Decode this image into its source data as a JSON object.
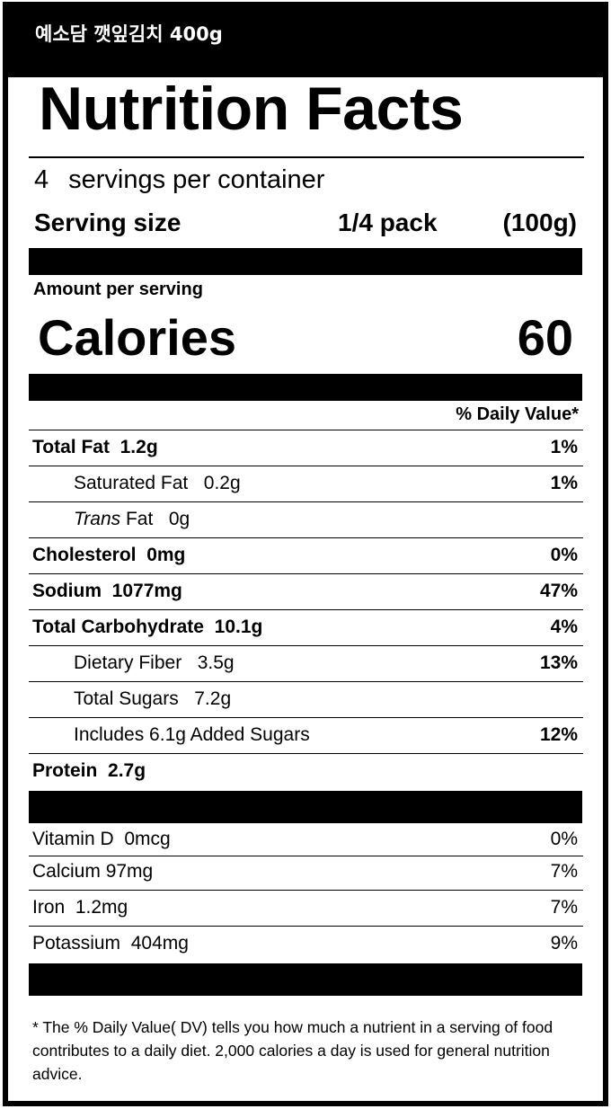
{
  "product_name": "예소담 깻잎김치 400g",
  "title": "Nutrition Facts",
  "servings": {
    "count": "4",
    "label": "servings per container"
  },
  "serving_size": {
    "label": "Serving size",
    "amount": "1/4 pack",
    "grams": "(100g)"
  },
  "amount_per_serving": "Amount per serving",
  "calories": {
    "label": "Calories",
    "value": "60"
  },
  "dv_header": "% Daily Value*",
  "nutrients": [
    {
      "name": "Total Fat",
      "amount": "1.2g",
      "dv": "1%"
    },
    {
      "name": "Saturated Fat",
      "amount": "0.2g",
      "dv": "1%"
    },
    {
      "name_italic": "Trans",
      "name": "Fat",
      "amount": "0g",
      "dv": ""
    },
    {
      "name": "Cholesterol",
      "amount": "0mg",
      "dv": "0%"
    },
    {
      "name": "Sodium",
      "amount": "1077mg",
      "dv": "47%"
    },
    {
      "name": "Total Carbohydrate",
      "amount": "10.1g",
      "dv": "4%"
    },
    {
      "name": "Dietary Fiber",
      "amount": "3.5g",
      "dv": "13%"
    },
    {
      "name": "Total Sugars",
      "amount": "7.2g",
      "dv": ""
    },
    {
      "name": "Includes 6.1g Added Sugars",
      "amount": "",
      "dv": "12%"
    },
    {
      "name": "Protein",
      "amount": "2.7g",
      "dv": ""
    }
  ],
  "vitamins": [
    {
      "name": "Vitamin D",
      "amount": "0mcg",
      "dv": "0%"
    },
    {
      "name": "Calcium",
      "amount": "97mg",
      "dv": "7%"
    },
    {
      "name": "Iron",
      "amount": "1.2mg",
      "dv": "7%"
    },
    {
      "name": "Potassium",
      "amount": "404mg",
      "dv": "9%"
    }
  ],
  "footnote": "* The % Daily Value( DV) tells you how much a nutrient in a serving of food contributes to a daily diet. 2,000 calories a day is used for general nutrition advice."
}
